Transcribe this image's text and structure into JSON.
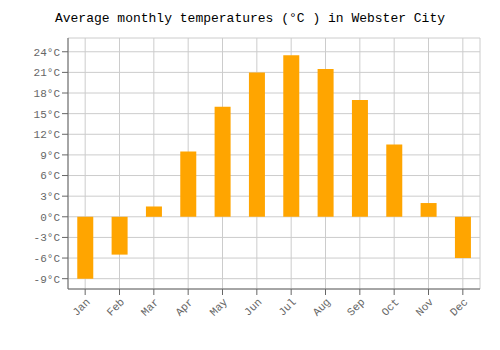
{
  "chart_data": {
    "type": "bar",
    "title": "Average monthly temperatures (°C ) in Webster City",
    "categories": [
      "Jan",
      "Feb",
      "Mar",
      "Apr",
      "May",
      "Jun",
      "Jul",
      "Aug",
      "Sep",
      "Oct",
      "Nov",
      "Dec"
    ],
    "values": [
      -9,
      -5.5,
      1.5,
      9.5,
      16,
      21,
      23.5,
      21.5,
      17,
      10.5,
      2,
      -6
    ],
    "color": "#FFA500",
    "ylim": [
      -10.5,
      26
    ],
    "yticks": [
      {
        "value": -9,
        "label": "-9°C"
      },
      {
        "value": -6,
        "label": "-6°C"
      },
      {
        "value": -3,
        "label": "-3°C"
      },
      {
        "value": 0,
        "label": "0°C"
      },
      {
        "value": 3,
        "label": "3°C"
      },
      {
        "value": 6,
        "label": "6°C"
      },
      {
        "value": 9,
        "label": "9°C"
      },
      {
        "value": 12,
        "label": "12°C"
      },
      {
        "value": 15,
        "label": "15°C"
      },
      {
        "value": 18,
        "label": "18°C"
      },
      {
        "value": 21,
        "label": "21°C"
      },
      {
        "value": 24,
        "label": "24°C"
      }
    ],
    "grid": true
  }
}
